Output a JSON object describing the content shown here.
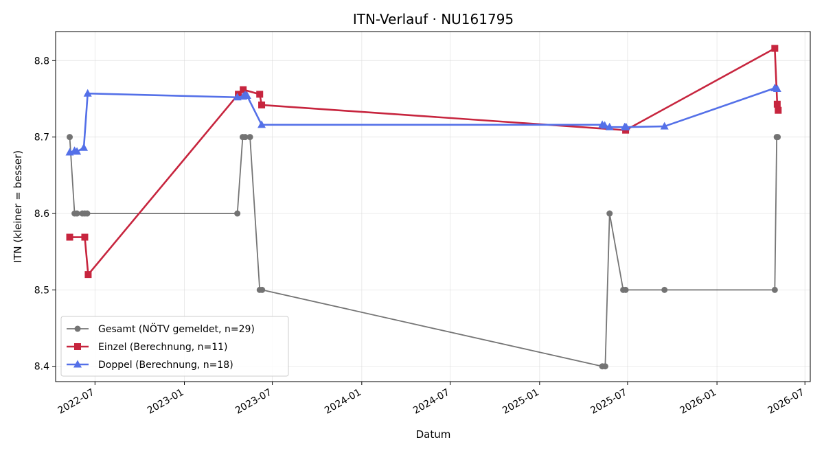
{
  "chart_data": {
    "type": "line",
    "title": "ITN-Verlauf · NU161795",
    "xlabel": "Datum",
    "ylabel": "ITN  (kleiner = besser)",
    "ylim": [
      8.38,
      8.838
    ],
    "xlim": [
      "2022-04-11",
      "2026-07-12"
    ],
    "grid": true,
    "legend_position": "lower-left",
    "x_ticks": [
      "2022-07",
      "2023-01",
      "2023-07",
      "2024-01",
      "2024-07",
      "2025-01",
      "2025-07",
      "2026-01",
      "2026-07"
    ],
    "y_ticks": [
      8.4,
      8.5,
      8.6,
      8.7,
      8.8
    ],
    "series": [
      {
        "name": "Gesamt (NÖTV gemeldet, n=29)",
        "color": "#3a3a3a",
        "marker": "circle",
        "points": [
          [
            "2022-05-10",
            8.7
          ],
          [
            "2022-05-20",
            8.6
          ],
          [
            "2022-05-25",
            8.6
          ],
          [
            "2022-06-05",
            8.6
          ],
          [
            "2022-06-10",
            8.6
          ],
          [
            "2022-06-15",
            8.6
          ],
          [
            "2023-04-20",
            8.6
          ],
          [
            "2023-05-01",
            8.7
          ],
          [
            "2023-05-06",
            8.7
          ],
          [
            "2023-05-16",
            8.7
          ],
          [
            "2023-06-05",
            8.5
          ],
          [
            "2023-06-10",
            8.5
          ],
          [
            "2025-05-10",
            8.4
          ],
          [
            "2025-05-16",
            8.4
          ],
          [
            "2025-05-25",
            8.6
          ],
          [
            "2025-06-22",
            8.5
          ],
          [
            "2025-06-27",
            8.5
          ],
          [
            "2025-09-15",
            8.5
          ],
          [
            "2026-04-30",
            8.5
          ],
          [
            "2026-05-04",
            8.7
          ],
          [
            "2026-05-06",
            8.7
          ]
        ]
      },
      {
        "name": "Einzel (Berechnung, n=11)",
        "color": "#c7253e",
        "marker": "square",
        "points": [
          [
            "2022-05-10",
            8.569
          ],
          [
            "2022-06-10",
            8.569
          ],
          [
            "2022-06-17",
            8.52
          ],
          [
            "2023-04-22",
            8.756
          ],
          [
            "2023-05-02",
            8.762
          ],
          [
            "2023-06-05",
            8.756
          ],
          [
            "2023-06-09",
            8.742
          ],
          [
            "2025-06-27",
            8.709
          ],
          [
            "2026-04-30",
            8.816
          ],
          [
            "2026-05-05",
            8.743
          ],
          [
            "2026-05-07",
            8.735
          ]
        ]
      },
      {
        "name": "Doppel (Berechnung, n=18)",
        "color": "#5470e8",
        "marker": "triangle",
        "points": [
          [
            "2022-05-10",
            8.68
          ],
          [
            "2022-05-20",
            8.682
          ],
          [
            "2022-05-25",
            8.681
          ],
          [
            "2022-06-08",
            8.686
          ],
          [
            "2022-06-16",
            8.757
          ],
          [
            "2023-04-20",
            8.752
          ],
          [
            "2023-05-02",
            8.753
          ],
          [
            "2023-05-06",
            8.755
          ],
          [
            "2023-05-10",
            8.754
          ],
          [
            "2023-06-09",
            8.716
          ],
          [
            "2025-05-10",
            8.716
          ],
          [
            "2025-05-15",
            8.715
          ],
          [
            "2025-05-25",
            8.713
          ],
          [
            "2025-06-25",
            8.713
          ],
          [
            "2025-06-28",
            8.713
          ],
          [
            "2025-09-15",
            8.714
          ],
          [
            "2026-04-30",
            8.764
          ],
          [
            "2026-05-05",
            8.763
          ]
        ]
      }
    ]
  }
}
